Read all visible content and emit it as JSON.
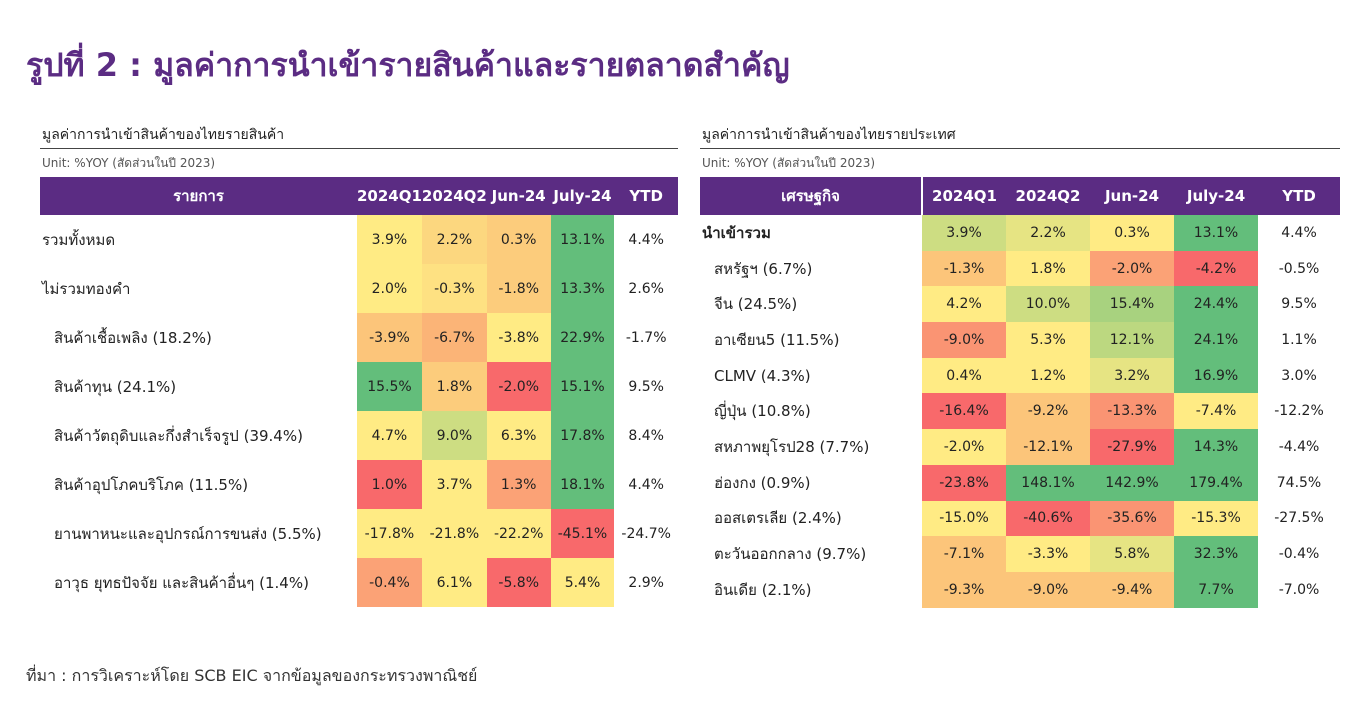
{
  "title": "รูปที่ 2 : มูลค่าการนำเข้ารายสินค้าและรายตลาดสำคัญ",
  "source": "ที่มา : การวิเคราะห์โดย SCB EIC จากข้อมูลของกระทรวงพาณิชย์",
  "colors": {
    "brand": "#5b2c83",
    "header_text": "#ffffff",
    "scale_low": "#f8696b",
    "scale_mid": "#ffeb84",
    "scale_high": "#63be7b"
  },
  "chart_data": [
    {
      "type": "table",
      "title": "มูลค่าการนำเข้าสินค้าของไทยรายสินค้า",
      "unit": "Unit: %YOY (สัดส่วนในปี 2023)",
      "label_header": "รายการ",
      "columns": [
        "2024Q1",
        "2024Q2",
        "Jun-24",
        "July-24",
        "YTD"
      ],
      "rows": [
        {
          "label": "รวมทั้งหมด",
          "level": 0,
          "values": [
            "3.9%",
            "2.2%",
            "0.3%",
            "13.1%",
            "4.4%"
          ],
          "colors": [
            "#ffeb84",
            "#fcd77f",
            "#fccc7c",
            "#63be7b"
          ]
        },
        {
          "label": "ไม่รวมทองคำ",
          "level": 0,
          "values": [
            "2.0%",
            "-0.3%",
            "-1.8%",
            "13.3%",
            "2.6%"
          ],
          "colors": [
            "#ffeb84",
            "#fee182",
            "#fccc7c",
            "#63be7b"
          ]
        },
        {
          "label": "สินค้าเชื้อเพลิง (18.2%)",
          "level": 1,
          "values": [
            "-3.9%",
            "-6.7%",
            "-3.8%",
            "22.9%",
            "-1.7%"
          ],
          "colors": [
            "#fcc57a",
            "#fbb477",
            "#ffeb84",
            "#63be7b"
          ]
        },
        {
          "label": "สินค้าทุน (24.1%)",
          "level": 1,
          "values": [
            "15.5%",
            "1.8%",
            "-2.0%",
            "15.1%",
            "9.5%"
          ],
          "colors": [
            "#63be7b",
            "#fccc7c",
            "#f8696b",
            "#63be7b"
          ]
        },
        {
          "label": "สินค้าวัตถุดิบและกึ่งสำเร็จรูป (39.4%)",
          "level": 1,
          "values": [
            "4.7%",
            "9.0%",
            "6.3%",
            "17.8%",
            "8.4%"
          ],
          "colors": [
            "#ffeb84",
            "#cddd82",
            "#ffeb84",
            "#63be7b"
          ]
        },
        {
          "label": "สินค้าอุปโภคบริโภค (11.5%)",
          "level": 1,
          "values": [
            "1.0%",
            "3.7%",
            "1.3%",
            "18.1%",
            "4.4%"
          ],
          "colors": [
            "#f8696b",
            "#ffeb84",
            "#fba276",
            "#63be7b"
          ]
        },
        {
          "label": "ยานพาหนะและอุปกรณ์การขนส่ง (5.5%)",
          "level": 1,
          "values": [
            "-17.8%",
            "-21.8%",
            "-22.2%",
            "-45.1%",
            "-24.7%"
          ],
          "colors": [
            "#ffeb84",
            "#ffeb84",
            "#ffeb84",
            "#f8696b"
          ]
        },
        {
          "label": "อาวุธ ยุทธปัจจัย และสินค้าอื่นๆ (1.4%)",
          "level": 1,
          "values": [
            "-0.4%",
            "6.1%",
            "-5.8%",
            "5.4%",
            "2.9%"
          ],
          "colors": [
            "#fba276",
            "#ffeb84",
            "#f8696b",
            "#ffeb84"
          ]
        }
      ]
    },
    {
      "type": "table",
      "title": "มูลค่าการนำเข้าสินค้าของไทยรายประเทศ",
      "unit": "Unit: %YOY (สัดส่วนในปี 2023)",
      "label_header": "เศรษฐกิจ",
      "columns": [
        "2024Q1",
        "2024Q2",
        "Jun-24",
        "July-24",
        "YTD"
      ],
      "rows": [
        {
          "label": "นำเข้ารวม",
          "level": 0,
          "bold": true,
          "values": [
            "3.9%",
            "2.2%",
            "0.3%",
            "13.1%",
            "4.4%"
          ],
          "colors": [
            "#cddd82",
            "#e6e483",
            "#ffeb84",
            "#63be7b"
          ]
        },
        {
          "label": "สหรัฐฯ (6.7%)",
          "level": 1,
          "values": [
            "-1.3%",
            "1.8%",
            "-2.0%",
            "-4.2%",
            "-0.5%"
          ],
          "colors": [
            "#fcc57a",
            "#ffeb84",
            "#fba276",
            "#f8696b"
          ]
        },
        {
          "label": "จีน (24.5%)",
          "level": 1,
          "values": [
            "4.2%",
            "10.0%",
            "15.4%",
            "24.4%",
            "9.5%"
          ],
          "colors": [
            "#ffeb84",
            "#cddd82",
            "#a8d27f",
            "#63be7b"
          ]
        },
        {
          "label": "อาเซียน5 (11.5%)",
          "level": 1,
          "values": [
            "-9.0%",
            "5.3%",
            "12.1%",
            "24.1%",
            "1.1%"
          ],
          "colors": [
            "#fa9473",
            "#ffeb84",
            "#bcd880",
            "#63be7b"
          ]
        },
        {
          "label": "CLMV (4.3%)",
          "level": 1,
          "values": [
            "0.4%",
            "1.2%",
            "3.2%",
            "16.9%",
            "3.0%"
          ],
          "colors": [
            "#ffeb84",
            "#ffeb84",
            "#e6e483",
            "#63be7b"
          ]
        },
        {
          "label": "ญี่ปุ่น (10.8%)",
          "level": 1,
          "values": [
            "-16.4%",
            "-9.2%",
            "-13.3%",
            "-7.4%",
            "-12.2%"
          ],
          "colors": [
            "#f8696b",
            "#fcc57a",
            "#fa9473",
            "#ffeb84"
          ]
        },
        {
          "label": "สหภาพยุโรป28 (7.7%)",
          "level": 1,
          "values": [
            "-2.0%",
            "-12.1%",
            "-27.9%",
            "14.3%",
            "-4.4%"
          ],
          "colors": [
            "#ffeb84",
            "#fcc57a",
            "#f8696b",
            "#63be7b"
          ]
        },
        {
          "label": "ฮ่องกง (0.9%)",
          "level": 1,
          "values": [
            "-23.8%",
            "148.1%",
            "142.9%",
            "179.4%",
            "74.5%"
          ],
          "colors": [
            "#f8696b",
            "#63be7b",
            "#63be7b",
            "#63be7b"
          ]
        },
        {
          "label": "ออสเตรเลีย (2.4%)",
          "level": 1,
          "values": [
            "-15.0%",
            "-40.6%",
            "-35.6%",
            "-15.3%",
            "-27.5%"
          ],
          "colors": [
            "#ffeb84",
            "#f8696b",
            "#fa9473",
            "#ffeb84"
          ]
        },
        {
          "label": "ตะวันออกกลาง (9.7%)",
          "level": 1,
          "values": [
            "-7.1%",
            "-3.3%",
            "5.8%",
            "32.3%",
            "-0.4%"
          ],
          "colors": [
            "#fcc57a",
            "#ffeb84",
            "#e6e483",
            "#63be7b"
          ]
        },
        {
          "label": "อินเดีย (2.1%)",
          "level": 1,
          "values": [
            "-9.3%",
            "-9.0%",
            "-9.4%",
            "7.7%",
            "-7.0%"
          ],
          "colors": [
            "#fcc57a",
            "#fcc57a",
            "#fcc57a",
            "#63be7b"
          ]
        }
      ]
    }
  ]
}
